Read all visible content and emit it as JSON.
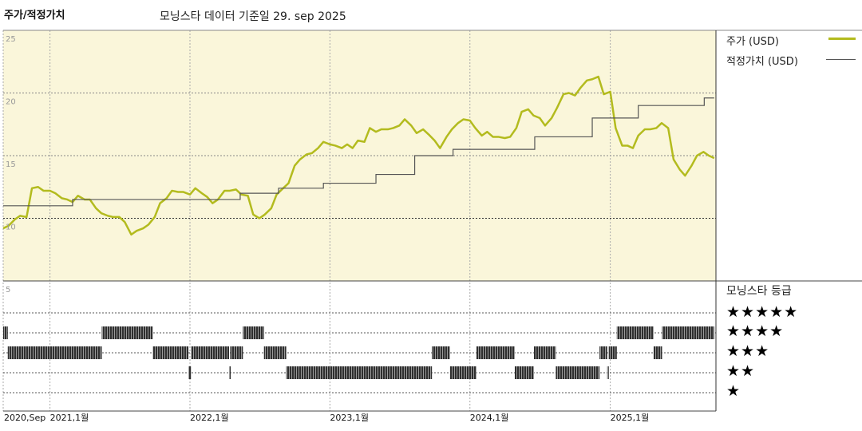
{
  "header": {
    "title": "주가/적정가치",
    "subtitle": "모닝스타 데이터 기준일 29. sep 2025"
  },
  "legend": {
    "price_label": "주가 (USD)",
    "fair_value_label": "적정가치 (USD)",
    "rating_title": "모닝스타 등급",
    "rating_rows": [
      "★★★★★",
      "★★★★",
      "★★★",
      "★★",
      "★"
    ]
  },
  "colors": {
    "price": "#b3bb1e",
    "fair_value": "#555555",
    "panel_bg": "#faf6da",
    "rating_bar": "#333333"
  },
  "chart_data": [
    {
      "type": "line",
      "xlim": [
        "2020-09-01",
        "2025-09-29"
      ],
      "ylim": [
        5,
        25
      ],
      "yticks": [
        "25",
        "20",
        "15",
        "10",
        "5"
      ],
      "xticks": [
        {
          "date": "2020-09-01",
          "label": "2020,Sep"
        },
        {
          "date": "2021-01-01",
          "label": "2021,1월"
        },
        {
          "date": "2022-01-01",
          "label": "2022,1월"
        },
        {
          "date": "2023-01-01",
          "label": "2023,1월"
        },
        {
          "date": "2024-01-01",
          "label": "2024,1월"
        },
        {
          "date": "2025-01-01",
          "label": "2025,1월"
        }
      ],
      "grid": true,
      "series": [
        {
          "name": "주가 (USD)",
          "x": [
            "2020-09-01",
            "2020-09-15",
            "2020-10-01",
            "2020-10-15",
            "2020-11-01",
            "2020-11-15",
            "2020-12-01",
            "2020-12-15",
            "2021-01-01",
            "2021-01-15",
            "2021-02-01",
            "2021-02-15",
            "2021-03-01",
            "2021-03-15",
            "2021-04-01",
            "2021-04-15",
            "2021-05-01",
            "2021-05-15",
            "2021-06-01",
            "2021-06-15",
            "2021-07-01",
            "2021-07-15",
            "2021-08-01",
            "2021-08-15",
            "2021-09-01",
            "2021-09-15",
            "2021-10-01",
            "2021-10-15",
            "2021-11-01",
            "2021-11-15",
            "2021-12-01",
            "2021-12-15",
            "2022-01-01",
            "2022-01-15",
            "2022-02-01",
            "2022-02-15",
            "2022-03-01",
            "2022-03-15",
            "2022-04-01",
            "2022-04-15",
            "2022-05-01",
            "2022-05-15",
            "2022-06-01",
            "2022-06-15",
            "2022-07-01",
            "2022-07-15",
            "2022-08-01",
            "2022-08-15",
            "2022-09-01",
            "2022-09-15",
            "2022-10-01",
            "2022-10-15",
            "2022-11-01",
            "2022-11-15",
            "2022-12-01",
            "2022-12-15",
            "2023-01-01",
            "2023-01-15",
            "2023-02-01",
            "2023-02-15",
            "2023-03-01",
            "2023-03-15",
            "2023-04-01",
            "2023-04-15",
            "2023-05-01",
            "2023-05-15",
            "2023-06-01",
            "2023-06-15",
            "2023-07-01",
            "2023-07-15",
            "2023-08-01",
            "2023-08-15",
            "2023-09-01",
            "2023-09-15",
            "2023-10-01",
            "2023-10-15",
            "2023-11-01",
            "2023-11-15",
            "2023-12-01",
            "2023-12-15",
            "2024-01-01",
            "2024-01-15",
            "2024-02-01",
            "2024-02-15",
            "2024-03-01",
            "2024-03-15",
            "2024-04-01",
            "2024-04-15",
            "2024-05-01",
            "2024-05-15",
            "2024-06-01",
            "2024-06-15",
            "2024-07-01",
            "2024-07-15",
            "2024-08-01",
            "2024-08-15",
            "2024-09-01",
            "2024-09-15",
            "2024-10-01",
            "2024-10-15",
            "2024-11-01",
            "2024-11-15",
            "2024-12-01",
            "2024-12-15",
            "2025-01-01",
            "2025-01-15",
            "2025-02-01",
            "2025-02-15",
            "2025-03-01",
            "2025-03-15",
            "2025-04-01",
            "2025-04-15",
            "2025-05-01",
            "2025-05-15",
            "2025-06-01",
            "2025-06-15",
            "2025-07-01",
            "2025-07-15",
            "2025-08-01",
            "2025-08-15",
            "2025-09-01",
            "2025-09-15",
            "2025-09-29"
          ],
          "y": [
            9.2,
            9.4,
            9.9,
            10.2,
            10.1,
            12.4,
            12.5,
            12.2,
            12.2,
            12.0,
            11.6,
            11.5,
            11.3,
            11.8,
            11.5,
            11.5,
            10.8,
            10.4,
            10.2,
            10.1,
            10.1,
            9.7,
            8.7,
            9.0,
            9.2,
            9.5,
            10.1,
            11.2,
            11.6,
            12.2,
            12.1,
            12.1,
            11.9,
            12.4,
            12.0,
            11.7,
            11.2,
            11.5,
            12.2,
            12.2,
            12.3,
            11.9,
            11.8,
            10.3,
            10.0,
            10.3,
            10.8,
            11.9,
            12.4,
            12.8,
            14.2,
            14.7,
            15.1,
            15.2,
            15.6,
            16.1,
            15.9,
            15.8,
            15.6,
            15.9,
            15.6,
            16.2,
            16.1,
            17.2,
            16.9,
            17.1,
            17.1,
            17.2,
            17.4,
            17.9,
            17.4,
            16.8,
            17.1,
            16.7,
            16.2,
            15.6,
            16.5,
            17.1,
            17.6,
            17.9,
            17.8,
            17.2,
            16.6,
            16.9,
            16.5,
            16.5,
            16.4,
            16.5,
            17.2,
            18.5,
            18.7,
            18.2,
            18.0,
            17.4,
            18.0,
            18.8,
            19.9,
            20.0,
            19.8,
            20.4,
            21.0,
            21.1,
            21.3,
            19.9,
            20.1,
            17.2,
            15.8,
            15.8,
            15.6,
            16.6,
            17.1,
            17.1,
            17.2,
            17.6,
            17.2,
            14.7,
            13.9,
            13.4,
            14.2,
            15.0,
            15.3,
            15.0,
            14.8
          ]
        },
        {
          "name": "적정가치 (USD)",
          "step": true,
          "x": [
            "2020-09-01",
            "2021-03-01",
            "2022-05-12",
            "2022-08-20",
            "2022-12-15",
            "2023-05-01",
            "2023-08-10",
            "2023-11-18",
            "2024-06-18",
            "2024-11-15",
            "2025-03-15",
            "2025-09-03",
            "2025-09-29"
          ],
          "y": [
            11.0,
            11.5,
            12.0,
            12.4,
            12.8,
            13.5,
            15.0,
            15.5,
            16.5,
            18.0,
            19.0,
            19.6,
            19.6
          ]
        }
      ]
    },
    {
      "type": "bar",
      "title": "모닝스타 등급",
      "ylim": [
        0,
        5
      ],
      "periods": [
        {
          "start": "2020-09-01",
          "end": "2020-09-13",
          "rating": 4
        },
        {
          "start": "2020-09-13",
          "end": "2021-05-16",
          "rating": 3
        },
        {
          "start": "2021-05-16",
          "end": "2021-09-26",
          "rating": 4
        },
        {
          "start": "2021-09-26",
          "end": "2021-12-28",
          "rating": 3
        },
        {
          "start": "2021-12-28",
          "end": "2022-01-04",
          "rating": 2
        },
        {
          "start": "2022-01-04",
          "end": "2022-04-13",
          "rating": 3
        },
        {
          "start": "2022-04-13",
          "end": "2022-04-16",
          "rating": 2
        },
        {
          "start": "2022-04-16",
          "end": "2022-05-19",
          "rating": 3
        },
        {
          "start": "2022-05-19",
          "end": "2022-07-13",
          "rating": 4
        },
        {
          "start": "2022-07-13",
          "end": "2022-09-09",
          "rating": 3
        },
        {
          "start": "2022-09-09",
          "end": "2023-09-24",
          "rating": 2
        },
        {
          "start": "2023-09-24",
          "end": "2023-11-10",
          "rating": 3
        },
        {
          "start": "2023-11-10",
          "end": "2024-01-18",
          "rating": 2
        },
        {
          "start": "2024-01-18",
          "end": "2024-04-27",
          "rating": 3
        },
        {
          "start": "2024-04-27",
          "end": "2024-06-16",
          "rating": 2
        },
        {
          "start": "2024-06-16",
          "end": "2024-08-12",
          "rating": 3
        },
        {
          "start": "2024-08-12",
          "end": "2024-12-04",
          "rating": 2
        },
        {
          "start": "2024-12-04",
          "end": "2024-12-24",
          "rating": 3
        },
        {
          "start": "2024-12-24",
          "end": "2024-12-28",
          "rating": 2
        },
        {
          "start": "2024-12-28",
          "end": "2025-01-18",
          "rating": 3
        },
        {
          "start": "2025-01-18",
          "end": "2025-04-24",
          "rating": 4
        },
        {
          "start": "2025-04-24",
          "end": "2025-05-16",
          "rating": 3
        },
        {
          "start": "2025-05-16",
          "end": "2025-09-29",
          "rating": 4
        }
      ]
    }
  ]
}
